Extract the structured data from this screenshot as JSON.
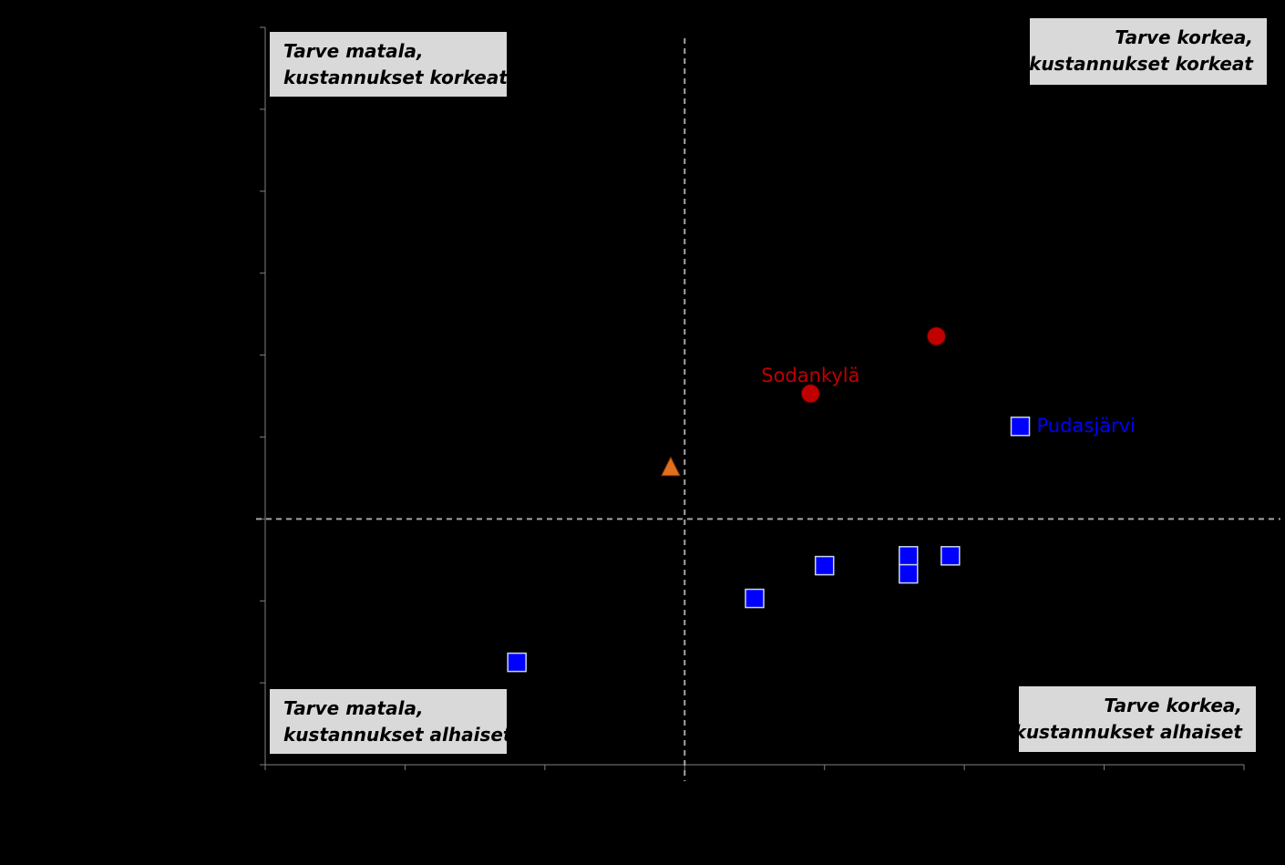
{
  "chart_data": {
    "type": "scatter",
    "title": "",
    "xlabel": "",
    "ylabel": "",
    "xlim": [
      0,
      7
    ],
    "ylim": [
      -3,
      6
    ],
    "x_ticks": [
      0,
      1,
      2,
      3,
      4,
      5,
      6,
      7
    ],
    "y_ticks": [
      -3,
      -2,
      -1,
      0,
      1,
      2,
      3,
      4,
      5,
      6
    ],
    "grid": false,
    "axis_color": "#808080",
    "background": "#000000",
    "reference_lines": {
      "x": 3,
      "y": 0,
      "color": "#a6a6a6",
      "style": "dashed"
    },
    "quadrant_labels": [
      {
        "name": "quadrant-top-left",
        "lines": [
          "Tarve matala,",
          "kustannukset korkeat"
        ],
        "align": "left"
      },
      {
        "name": "quadrant-top-right",
        "lines": [
          "Tarve korkea,",
          "kustannukset korkeat"
        ],
        "align": "right"
      },
      {
        "name": "quadrant-bottom-left",
        "lines": [
          "Tarve matala,",
          "kustannukset alhaiset"
        ],
        "align": "left"
      },
      {
        "name": "quadrant-bottom-right",
        "lines": [
          "Tarve korkea,",
          "kustannukset alhaiset"
        ],
        "align": "right"
      }
    ],
    "series": [
      {
        "marker": "square",
        "color": "#0000ff",
        "points": [
          {
            "x": 1.8,
            "y": -1.75
          },
          {
            "x": 3.5,
            "y": -0.97
          },
          {
            "x": 4.0,
            "y": -0.57
          },
          {
            "x": 4.6,
            "y": -0.45
          },
          {
            "x": 4.6,
            "y": -0.67
          },
          {
            "x": 4.9,
            "y": -0.45
          },
          {
            "x": 5.4,
            "y": 1.13,
            "label": "Pudasjärvi"
          }
        ]
      },
      {
        "marker": "circle",
        "color": "#c00000",
        "points": [
          {
            "x": 3.9,
            "y": 1.53,
            "label": "Sodankylä"
          },
          {
            "x": 4.8,
            "y": 2.23
          }
        ]
      },
      {
        "marker": "triangle",
        "color": "#e07020",
        "points": [
          {
            "x": 2.9,
            "y": 0.63
          }
        ]
      }
    ]
  }
}
